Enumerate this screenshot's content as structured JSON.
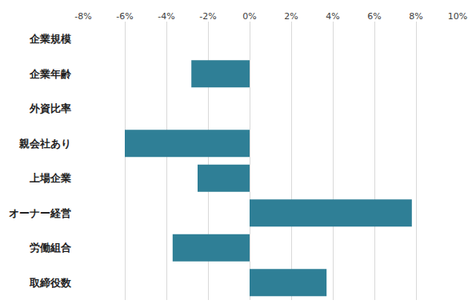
{
  "chart_data": {
    "type": "bar",
    "orientation": "horizontal",
    "categories": [
      "企業規模",
      "企業年齢",
      "外資比率",
      "親会社あり",
      "上場企業",
      "オーナー経営",
      "労働組合",
      "取締役数"
    ],
    "values": [
      null,
      -2.8,
      null,
      -6.0,
      -2.5,
      7.8,
      -3.7,
      3.7
    ],
    "color": "#2f7f96",
    "xlim": [
      -8,
      10
    ],
    "xticks": [
      {
        "value": -8,
        "label": "-8%"
      },
      {
        "value": -6,
        "label": "-6%"
      },
      {
        "value": -4,
        "label": "-4%"
      },
      {
        "value": -2,
        "label": "-2%"
      },
      {
        "value": 0,
        "label": "0%"
      },
      {
        "value": 2,
        "label": "2%"
      },
      {
        "value": 4,
        "label": "4%"
      },
      {
        "value": 6,
        "label": "6%"
      },
      {
        "value": 8,
        "label": "8%"
      },
      {
        "value": 10,
        "label": "10%"
      }
    ],
    "grid": true
  }
}
